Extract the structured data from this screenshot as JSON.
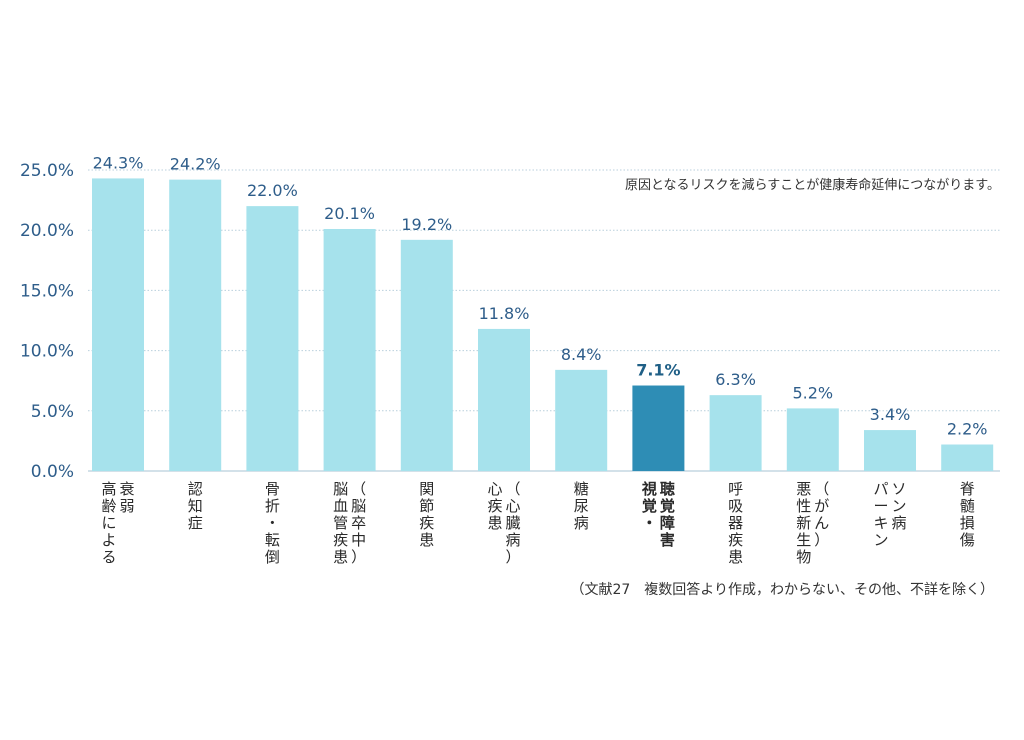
{
  "chart_data": {
    "type": "bar",
    "annotation": "原因となるリスクを減らすことが健康寿命延伸につながります。",
    "source_note": "（文献27　複数回答より作成，わからない、その他、不詳を除く）",
    "y_ticks": [
      "0.0%",
      "5.0%",
      "10.0%",
      "15.0%",
      "20.0%",
      "25.0%"
    ],
    "ylim": [
      0,
      25
    ],
    "grid": true,
    "colors": {
      "bar": "#a6e2ec",
      "highlight": "#2e8db5",
      "grid": "#b9cfdc",
      "axis_text": "#2e5d8a"
    },
    "highlight_index": 7,
    "categories": [
      [
        "衰弱",
        "高齢による"
      ],
      [
        "認知症"
      ],
      [
        "骨折・転倒"
      ],
      [
        "（脳卒中）",
        "脳血管疾患"
      ],
      [
        "関節疾患"
      ],
      [
        "（心臓病）",
        "心疾患"
      ],
      [
        "糖尿病"
      ],
      [
        "聴覚障害",
        "視覚・"
      ],
      [
        "呼吸器疾患"
      ],
      [
        "（がん）",
        "悪性新生物"
      ],
      [
        "ソン病",
        "パーキン"
      ],
      [
        "脊髄損傷"
      ]
    ],
    "values": [
      24.3,
      24.2,
      22.0,
      20.1,
      19.2,
      11.8,
      8.4,
      7.1,
      6.3,
      5.2,
      3.4,
      2.2
    ],
    "value_labels": [
      "24.3%",
      "24.2%",
      "22.0%",
      "20.1%",
      "19.2%",
      "11.8%",
      "8.4%",
      "7.1%",
      "6.3%",
      "5.2%",
      "3.4%",
      "2.2%"
    ]
  }
}
